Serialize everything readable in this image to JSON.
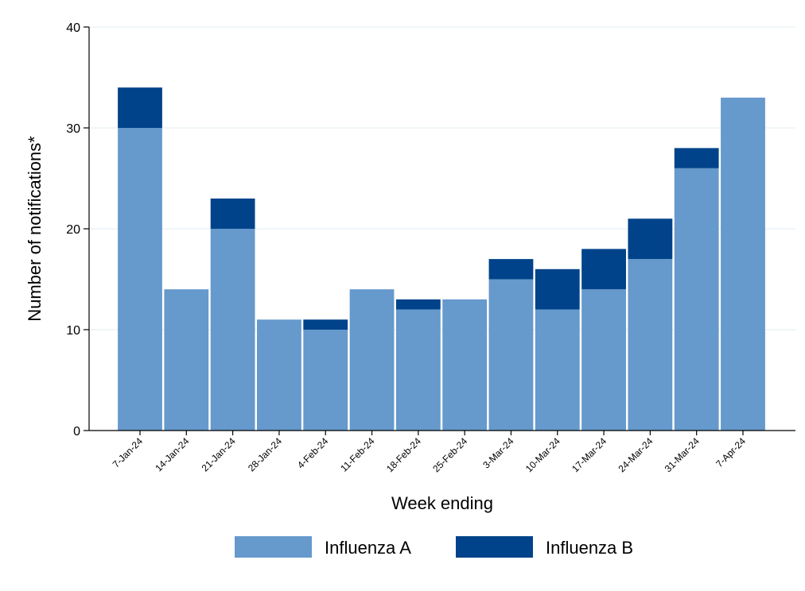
{
  "chart_data": {
    "type": "bar",
    "stacked": true,
    "categories": [
      "7-Jan-24",
      "14-Jan-24",
      "21-Jan-24",
      "28-Jan-24",
      "4-Feb-24",
      "11-Feb-24",
      "18-Feb-24",
      "25-Feb-24",
      "3-Mar-24",
      "10-Mar-24",
      "17-Mar-24",
      "24-Mar-24",
      "31-Mar-24",
      "7-Apr-24"
    ],
    "series": [
      {
        "name": "Influenza A",
        "color": "#6699cc",
        "values": [
          30,
          14,
          20,
          11,
          10,
          14,
          12,
          13,
          15,
          12,
          14,
          17,
          26,
          33
        ]
      },
      {
        "name": "Influenza B",
        "color": "#00438a",
        "values": [
          4,
          0,
          3,
          0,
          1,
          0,
          1,
          0,
          2,
          4,
          4,
          4,
          2,
          0
        ]
      }
    ],
    "xlabel": "Week ending",
    "ylabel": "Number of notifications*",
    "ylim": [
      0,
      40
    ],
    "yticks": [
      0,
      10,
      20,
      30,
      40
    ],
    "grid": true,
    "legend_position": "bottom-center"
  }
}
